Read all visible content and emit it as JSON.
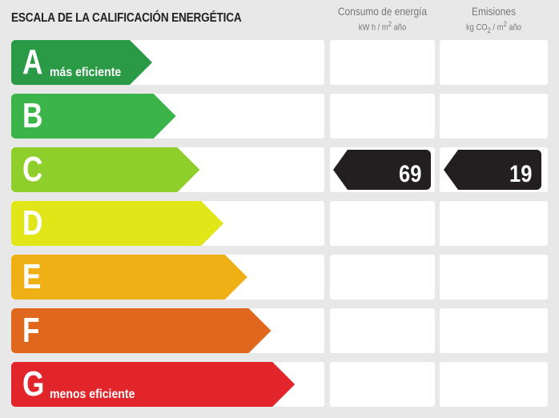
{
  "title": "ESCALA DE LA CALIFICACIÓN ENERGÉTICA",
  "columns": [
    {
      "label": "Consumo de energía",
      "unit_html": "kW h / m<sup>2</sup> año"
    },
    {
      "label": "Emisiones",
      "unit_html": "kg CO<sub>2</sub> / m<sup>2</sup> año"
    }
  ],
  "ratings": [
    {
      "letter": "A",
      "sublabel": "más eficiente",
      "color": "#2a9a47"
    },
    {
      "letter": "B",
      "sublabel": "",
      "color": "#3bb54a"
    },
    {
      "letter": "C",
      "sublabel": "",
      "color": "#8ecf2b"
    },
    {
      "letter": "D",
      "sublabel": "",
      "color": "#e1e619"
    },
    {
      "letter": "E",
      "sublabel": "",
      "color": "#efb015"
    },
    {
      "letter": "F",
      "sublabel": "",
      "color": "#e0681e"
    },
    {
      "letter": "G",
      "sublabel": "menos eficiente",
      "color": "#e2252b"
    }
  ],
  "current": {
    "rating": "C",
    "consumption": "69",
    "emissions": "19",
    "tag_color": "#231f20"
  }
}
